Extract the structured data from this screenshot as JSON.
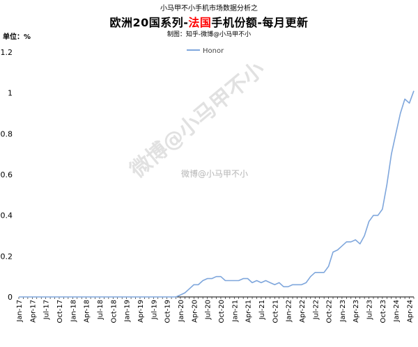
{
  "header": {
    "top_line": "小马甲不小手机市场数据分析之",
    "title_prefix": "欧洲20国系列-",
    "title_highlight": "法国",
    "title_suffix": "手机份额-每月更新",
    "credit": "制图：知乎-微博@小马甲不小",
    "unit": "单位：%"
  },
  "watermark": {
    "big": "微博@小马甲不小",
    "small": "微博@小马甲不小"
  },
  "colors": {
    "line": "#7ea6dc",
    "axis": "#000000",
    "highlight": "#ff0000"
  },
  "chart_data": {
    "type": "line",
    "title": "欧洲20国系列-法国手机份额-每月更新",
    "ylim": [
      0,
      1.2
    ],
    "yticks": [
      "0",
      "0.2",
      "0.4",
      "0.6",
      "0.8",
      "1",
      "1.2"
    ],
    "xtick_labels": [
      "Jan-17",
      "Apr-17",
      "Jul-17",
      "Oct-17",
      "Jan-18",
      "Apr-18",
      "Jul-18",
      "Oct-18",
      "Jan-19",
      "Apr-19",
      "Jul-19",
      "Oct-19",
      "Jan-20",
      "Apr-20",
      "Jul-20",
      "Oct-20",
      "Jan-21",
      "Apr-21",
      "Jul-21",
      "Oct-21",
      "Jan-22",
      "Apr-22",
      "Jul-22",
      "Oct-22",
      "Jan-23",
      "Apr-23",
      "Jul-23",
      "Oct-23",
      "Jan-24",
      "Apr-24"
    ],
    "legend_position": "top-center",
    "grid": false,
    "series": [
      {
        "name": "Honor",
        "values": [
          0,
          0,
          0,
          0,
          0,
          0,
          0,
          0,
          0,
          0,
          0,
          0,
          0,
          0,
          0,
          0,
          0,
          0,
          0,
          0,
          0,
          0,
          0,
          0,
          0,
          0,
          0,
          0,
          0,
          0,
          0,
          0,
          0,
          0,
          0,
          0,
          0.01,
          0.02,
          0.04,
          0.06,
          0.06,
          0.08,
          0.09,
          0.09,
          0.1,
          0.1,
          0.08,
          0.08,
          0.08,
          0.08,
          0.09,
          0.09,
          0.07,
          0.08,
          0.07,
          0.08,
          0.07,
          0.06,
          0.07,
          0.05,
          0.05,
          0.06,
          0.06,
          0.06,
          0.07,
          0.1,
          0.12,
          0.12,
          0.12,
          0.15,
          0.22,
          0.23,
          0.25,
          0.27,
          0.27,
          0.28,
          0.26,
          0.3,
          0.37,
          0.4,
          0.4,
          0.43,
          0.55,
          0.7,
          0.8,
          0.9,
          0.97,
          0.95,
          1.01
        ]
      }
    ]
  }
}
